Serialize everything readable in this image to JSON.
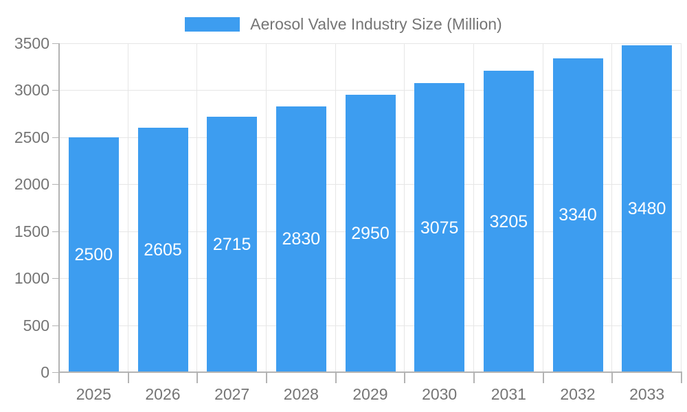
{
  "chart_data": {
    "type": "bar",
    "title": "Aerosol Valve Industry Size (Million)",
    "categories": [
      "2025",
      "2026",
      "2027",
      "2028",
      "2029",
      "2030",
      "2031",
      "2032",
      "2033"
    ],
    "values": [
      2500,
      2605,
      2715,
      2830,
      2950,
      3075,
      3205,
      3340,
      3480
    ],
    "series": [
      {
        "name": "Aerosol Valve Industry Size (Million)",
        "values": [
          2500,
          2605,
          2715,
          2830,
          2950,
          3075,
          3205,
          3340,
          3480
        ]
      }
    ],
    "xlabel": "",
    "ylabel": "",
    "ylim": [
      0,
      3500
    ],
    "ytick_step": 500,
    "ytick_labels": [
      "0",
      "500",
      "1000",
      "1500",
      "2000",
      "2500",
      "3000",
      "3500"
    ],
    "legend_position": "top-center",
    "grid": true,
    "bar_color": "#3d9df0",
    "bar_label_color": "#ffffff",
    "axis_text_color": "#757575"
  }
}
